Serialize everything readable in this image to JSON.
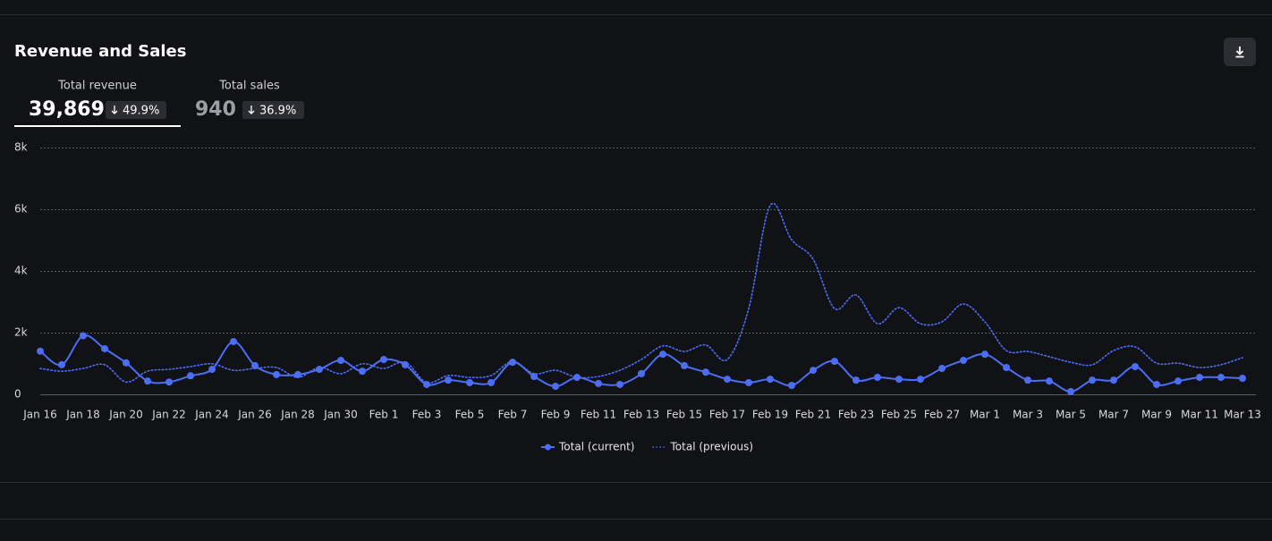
{
  "header": {
    "title": "Revenue and Sales"
  },
  "metrics": [
    {
      "label": "Total revenue",
      "value": "39,869",
      "change": "49.9%"
    },
    {
      "label": "Total sales",
      "value": "940",
      "change": "36.9%"
    }
  ],
  "chart_data": {
    "type": "line",
    "categories": [
      "Jan 16",
      null,
      "Jan 18",
      null,
      "Jan 20",
      null,
      "Jan 22",
      null,
      "Jan 24",
      null,
      "Jan 26",
      null,
      "Jan 28",
      null,
      "Jan 30",
      null,
      "Feb 1",
      null,
      "Feb 3",
      null,
      "Feb 5",
      null,
      "Feb 7",
      null,
      "Feb 9",
      null,
      "Feb 11",
      null,
      "Feb 13",
      null,
      "Feb 15",
      null,
      "Feb 17",
      null,
      "Feb 19",
      null,
      "Feb 21",
      null,
      "Feb 23",
      null,
      "Feb 25",
      null,
      "Feb 27",
      null,
      "Mar 1",
      null,
      "Mar 3",
      null,
      "Mar 5",
      null,
      "Mar 7",
      null,
      "Mar 9",
      null,
      "Mar 11",
      null,
      "Mar 13"
    ],
    "series": [
      {
        "name": "Total (current)",
        "color": "#4c6ef5",
        "style": "solid",
        "values": [
          1400,
          960,
          1900,
          1480,
          1020,
          430,
          400,
          600,
          810,
          1710,
          930,
          640,
          640,
          810,
          1100,
          750,
          1130,
          960,
          320,
          460,
          380,
          380,
          1040,
          580,
          260,
          550,
          350,
          320,
          670,
          1300,
          930,
          720,
          490,
          380,
          490,
          290,
          780,
          1070,
          460,
          550,
          490,
          490,
          840,
          1100,
          1300,
          870,
          460,
          430,
          90,
          460,
          460,
          900,
          320,
          430,
          550,
          550,
          520
        ]
      },
      {
        "name": "Total (previous)",
        "color": "#4c6ef5",
        "style": "dotted",
        "values": [
          840,
          750,
          840,
          960,
          400,
          750,
          810,
          900,
          990,
          780,
          840,
          870,
          550,
          870,
          670,
          990,
          840,
          1040,
          380,
          610,
          550,
          610,
          1070,
          670,
          780,
          550,
          580,
          780,
          1130,
          1570,
          1390,
          1600,
          1130,
          2780,
          6120,
          5010,
          4380,
          2780,
          3220,
          2290,
          2810,
          2290,
          2350,
          2930,
          2350,
          1420,
          1390,
          1220,
          1040,
          960,
          1420,
          1540,
          1010,
          1010,
          870,
          960,
          1190
        ]
      }
    ],
    "ylim": [
      0,
      8000
    ],
    "yticks": [
      0,
      {
        "value": 2000,
        "label": "2k"
      },
      {
        "value": 4000,
        "label": "4k"
      },
      {
        "value": 6000,
        "label": "6k"
      },
      {
        "value": 8000,
        "label": "8k"
      }
    ],
    "grid": true,
    "legend": "bottom"
  }
}
